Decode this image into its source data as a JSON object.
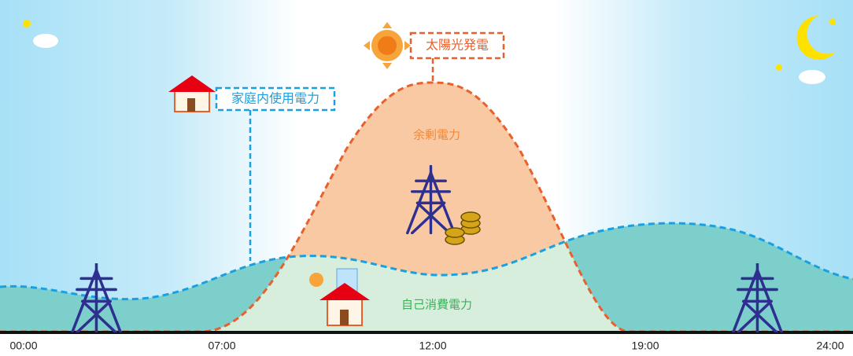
{
  "labels": {
    "solar": "太陽光発電",
    "household": "家庭内使用電力",
    "surplus": "余剰電力",
    "self_consumption": "自己消費電力"
  },
  "time_axis": [
    "00:00",
    "07:00",
    "12:00",
    "19:00",
    "24:00"
  ]
}
